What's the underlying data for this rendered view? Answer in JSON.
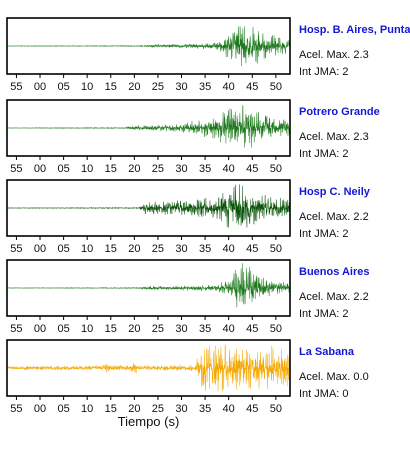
{
  "chart_data": {
    "type": "line",
    "xlabel": "Tiempo (s)",
    "x_tick_labels": [
      "55",
      "00",
      "05",
      "10",
      "15",
      "20",
      "25",
      "30",
      "35",
      "40",
      "45",
      "50"
    ],
    "x_tick_values_seconds_from_panel_start": [
      2,
      7,
      12,
      17,
      22,
      27,
      32,
      37,
      42,
      47,
      52,
      57
    ],
    "panel_duration_seconds": 60,
    "panels": [
      {
        "station": "Hosp. B. Aires, Puntare",
        "accel_label": "Acel. Max. 2.3",
        "jma_label": "Int JMA: 2",
        "color": "#1f7a1f",
        "series": [
          {
            "t": 0,
            "amp": 0.01
          },
          {
            "t": 29,
            "amp": 0.02
          },
          {
            "t": 30,
            "amp": 0.06
          },
          {
            "t": 38,
            "amp": 0.08
          },
          {
            "t": 44,
            "amp": 0.15
          },
          {
            "t": 46,
            "amp": 0.45
          },
          {
            "t": 48,
            "amp": 0.8
          },
          {
            "t": 50,
            "amp": 1.0
          },
          {
            "t": 52,
            "amp": 0.85
          },
          {
            "t": 55,
            "amp": 0.5
          },
          {
            "t": 60,
            "amp": 0.25
          }
        ]
      },
      {
        "station": "Potrero Grande",
        "accel_label": "Acel. Max. 2.3",
        "jma_label": "Int JMA: 2",
        "color": "#1f7a1f",
        "series": [
          {
            "t": 0,
            "amp": 0.01
          },
          {
            "t": 25,
            "amp": 0.02
          },
          {
            "t": 26,
            "amp": 0.08
          },
          {
            "t": 36,
            "amp": 0.15
          },
          {
            "t": 43,
            "amp": 0.4
          },
          {
            "t": 46,
            "amp": 0.7
          },
          {
            "t": 49,
            "amp": 1.0
          },
          {
            "t": 52,
            "amp": 0.8
          },
          {
            "t": 56,
            "amp": 0.5
          },
          {
            "t": 60,
            "amp": 0.3
          }
        ]
      },
      {
        "station": "Hosp C. Neily",
        "accel_label": "Acel. Max. 2.2",
        "jma_label": "Int JMA: 2",
        "color": "#0b550b",
        "series": [
          {
            "t": 0,
            "amp": 0.01
          },
          {
            "t": 28,
            "amp": 0.02
          },
          {
            "t": 29,
            "amp": 0.25
          },
          {
            "t": 36,
            "amp": 0.3
          },
          {
            "t": 44,
            "amp": 0.45
          },
          {
            "t": 47,
            "amp": 0.8
          },
          {
            "t": 49,
            "amp": 1.0
          },
          {
            "t": 52,
            "amp": 0.75
          },
          {
            "t": 56,
            "amp": 0.45
          },
          {
            "t": 60,
            "amp": 0.35
          }
        ]
      },
      {
        "station": "Buenos Aires",
        "accel_label": "Acel. Max. 2.2",
        "jma_label": "Int JMA: 2",
        "color": "#1f7a1f",
        "series": [
          {
            "t": 0,
            "amp": 0.01
          },
          {
            "t": 28,
            "amp": 0.02
          },
          {
            "t": 29,
            "amp": 0.07
          },
          {
            "t": 44,
            "amp": 0.12
          },
          {
            "t": 47,
            "amp": 0.35
          },
          {
            "t": 49,
            "amp": 0.9
          },
          {
            "t": 50,
            "amp": 1.0
          },
          {
            "t": 53,
            "amp": 0.6
          },
          {
            "t": 56,
            "amp": 0.3
          },
          {
            "t": 60,
            "amp": 0.2
          }
        ]
      },
      {
        "station": "La Sabana",
        "accel_label": "Acel. Max. 0.0",
        "jma_label": "Int JMA: 0",
        "color": "#f5a800",
        "series": [
          {
            "t": 0,
            "amp": 0.08
          },
          {
            "t": 20,
            "amp": 0.1
          },
          {
            "t": 21,
            "amp": 0.25
          },
          {
            "t": 22,
            "amp": 0.1
          },
          {
            "t": 26,
            "amp": 0.12
          },
          {
            "t": 27,
            "amp": 0.3
          },
          {
            "t": 28,
            "amp": 0.1
          },
          {
            "t": 40,
            "amp": 0.12
          },
          {
            "t": 41,
            "amp": 1.0
          },
          {
            "t": 50,
            "amp": 0.9
          },
          {
            "t": 60,
            "amp": 0.85
          }
        ]
      }
    ]
  }
}
